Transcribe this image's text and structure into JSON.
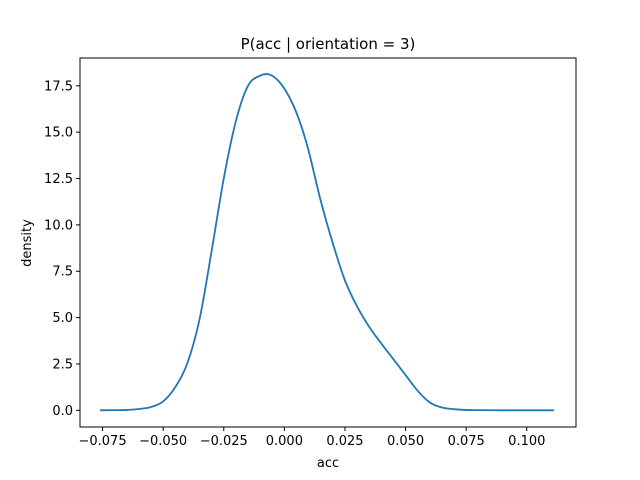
{
  "chart_data": {
    "type": "line",
    "title": "P(acc | orientation = 3)",
    "xlabel": "acc",
    "ylabel": "density",
    "xlim": [
      -0.0843,
      0.1203
    ],
    "ylim": [
      -0.9,
      19.0
    ],
    "grid": false,
    "xticks": [
      -0.075,
      -0.05,
      -0.025,
      0.0,
      0.025,
      0.05,
      0.075,
      0.1
    ],
    "xtick_labels": [
      "−0.075",
      "−0.050",
      "−0.025",
      "0.000",
      "0.025",
      "0.050",
      "0.075",
      "0.100"
    ],
    "yticks": [
      0.0,
      2.5,
      5.0,
      7.5,
      10.0,
      12.5,
      15.0,
      17.5
    ],
    "ytick_labels": [
      "0.0",
      "2.5",
      "5.0",
      "7.5",
      "10.0",
      "12.5",
      "15.0",
      "17.5"
    ],
    "series": [
      {
        "color": "#1f77b4",
        "x": [
          -0.0757,
          -0.07,
          -0.065,
          -0.06,
          -0.055,
          -0.05,
          -0.045,
          -0.04,
          -0.035,
          -0.03,
          -0.025,
          -0.02,
          -0.015,
          -0.01,
          -0.006,
          -0.002,
          0.002,
          0.006,
          0.01,
          0.015,
          0.02,
          0.025,
          0.03,
          0.035,
          0.04,
          0.045,
          0.05,
          0.055,
          0.06,
          0.065,
          0.07,
          0.075,
          0.08,
          0.09,
          0.1,
          0.111
        ],
        "y": [
          0.0,
          0.01,
          0.02,
          0.07,
          0.18,
          0.48,
          1.25,
          2.55,
          4.9,
          8.6,
          12.5,
          15.6,
          17.5,
          18.05,
          18.1,
          17.7,
          16.9,
          15.7,
          14.0,
          11.3,
          9.0,
          7.0,
          5.6,
          4.5,
          3.6,
          2.75,
          1.9,
          1.05,
          0.42,
          0.15,
          0.06,
          0.02,
          0.01,
          0.0,
          0.0,
          0.0
        ]
      }
    ]
  }
}
